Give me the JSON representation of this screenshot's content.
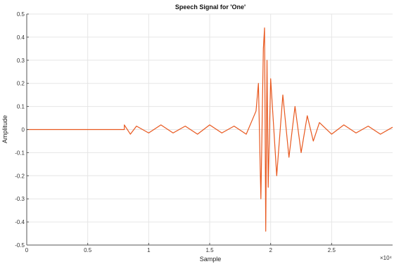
{
  "chart_data": {
    "type": "line",
    "title": "Speech Signal for 'One'",
    "xlabel": "Sample",
    "ylabel": "Amplitude",
    "x_exponent_label": "×10⁴",
    "xlim": [
      0,
      3
    ],
    "ylim": [
      -0.5,
      0.5
    ],
    "x_ticks": [
      0,
      0.5,
      1,
      1.5,
      2,
      2.5
    ],
    "x_tick_labels": [
      "0",
      "0.5",
      "1",
      "1.5",
      "2",
      "2.5"
    ],
    "y_ticks": [
      -0.5,
      -0.4,
      -0.3,
      -0.2,
      -0.1,
      0,
      0.1,
      0.2,
      0.3,
      0.4,
      0.5
    ],
    "y_tick_labels": [
      "-0.5",
      "-0.4",
      "-0.3",
      "-0.2",
      "-0.1",
      "0",
      "0.1",
      "0.2",
      "0.3",
      "0.4",
      "0.5"
    ],
    "grid": true,
    "line_color": "#e8581f",
    "series": [
      {
        "x": [
          0,
          0.8,
          0.8,
          0.85,
          0.9,
          1.0,
          1.1,
          1.2,
          1.3,
          1.4,
          1.5,
          1.6,
          1.7,
          1.8,
          1.88,
          1.9,
          1.92,
          1.94,
          1.95,
          1.96,
          1.97,
          1.98,
          2.0,
          2.05,
          2.1,
          2.15,
          2.2,
          2.25,
          2.3,
          2.35,
          2.4,
          2.5,
          2.6,
          2.7,
          2.8,
          2.9,
          3.0
        ],
        "y": [
          0,
          0,
          0.02,
          -0.02,
          0.015,
          -0.015,
          0.02,
          -0.015,
          0.015,
          -0.02,
          0.02,
          -0.015,
          0.015,
          -0.02,
          0.08,
          0.2,
          -0.3,
          0.35,
          0.44,
          -0.44,
          0.3,
          -0.25,
          0.22,
          -0.2,
          0.15,
          -0.12,
          0.1,
          -0.1,
          0.06,
          -0.05,
          0.03,
          -0.02,
          0.02,
          -0.015,
          0.015,
          -0.02,
          0.01
        ]
      }
    ]
  }
}
